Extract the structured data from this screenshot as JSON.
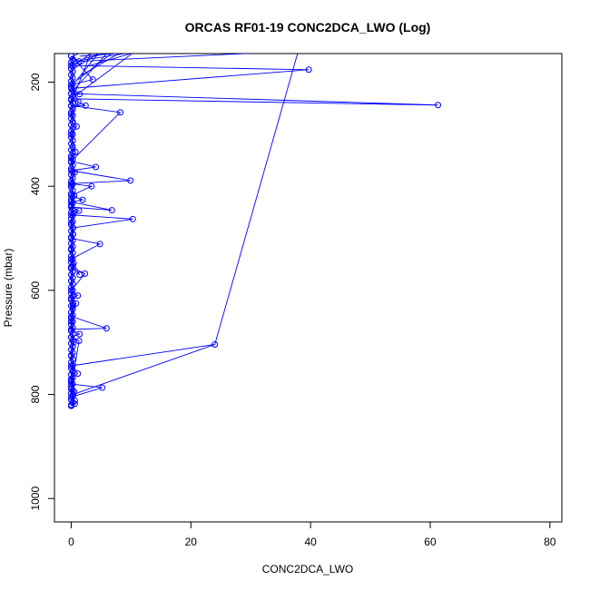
{
  "chart_data": {
    "type": "line",
    "title": "ORCAS RF01-19 CONC2DCA_LWO (Log)",
    "xlabel": "CONC2DCA_LWO",
    "ylabel": "Pressure (mbar)",
    "xlim": [
      -2.8,
      82
    ],
    "ylim": [
      1045,
      145
    ],
    "y_inverted": true,
    "grid": false,
    "x_ticks": [
      0,
      20,
      40,
      60,
      80
    ],
    "x_tick_labels": [
      "0",
      "20",
      "40",
      "60",
      "80"
    ],
    "y_ticks": [
      200,
      400,
      600,
      800,
      1000
    ],
    "y_tick_labels": [
      "200",
      "400",
      "600",
      "800",
      "1000"
    ],
    "colors": {
      "series": "#0000ff",
      "text": "#000000",
      "frame": "#000000"
    },
    "series": [
      {
        "marker": "open-circle",
        "points": [
          [
            0,
            820
          ],
          [
            0.6,
            812
          ],
          [
            0,
            805
          ],
          [
            5.2,
            787
          ],
          [
            0,
            780
          ],
          [
            0,
            770
          ],
          [
            1.1,
            760
          ],
          [
            0,
            745
          ],
          [
            24,
            704
          ],
          [
            0.3,
            800
          ],
          [
            0,
            790
          ],
          [
            1.3,
            697
          ],
          [
            0,
            690
          ],
          [
            1.4,
            684
          ],
          [
            0,
            675
          ],
          [
            5.9,
            673
          ],
          [
            0,
            650
          ],
          [
            0.8,
            625
          ],
          [
            0,
            615
          ],
          [
            1.1,
            610
          ],
          [
            0,
            600
          ],
          [
            2.3,
            568
          ],
          [
            0,
            555
          ],
          [
            1.4,
            570
          ],
          [
            0,
            540
          ],
          [
            4.8,
            511
          ],
          [
            0,
            500
          ],
          [
            0.3,
            480
          ],
          [
            10.3,
            463
          ],
          [
            0,
            455
          ],
          [
            1.3,
            447
          ],
          [
            0,
            440
          ],
          [
            6.8,
            446
          ],
          [
            0,
            430
          ],
          [
            1.9,
            426
          ],
          [
            0,
            418
          ],
          [
            3.4,
            400
          ],
          [
            0,
            395
          ],
          [
            9.9,
            389
          ],
          [
            0,
            370
          ],
          [
            4.1,
            363
          ],
          [
            0,
            352
          ],
          [
            8.2,
            258
          ],
          [
            0,
            245
          ],
          [
            2.4,
            245
          ],
          [
            0,
            232
          ],
          [
            61.3,
            244
          ],
          [
            0,
            222
          ],
          [
            1.4,
            223
          ],
          [
            0,
            212
          ],
          [
            39.7,
            176
          ],
          [
            0,
            168
          ],
          [
            1.3,
            160
          ],
          [
            0,
            150
          ],
          [
            3.6,
            195
          ],
          [
            0,
            205
          ],
          [
            1.2,
            238
          ],
          [
            0,
            262
          ],
          [
            0.9,
            285
          ],
          [
            0,
            300
          ],
          [
            0.7,
            334
          ],
          [
            0,
            346
          ],
          [
            0.6,
            373
          ],
          [
            0,
            398
          ],
          [
            0.5,
            418
          ],
          [
            0,
            436
          ],
          [
            0.4,
            452
          ],
          [
            0,
            470
          ],
          [
            0.3,
            492
          ],
          [
            0,
            520
          ],
          [
            0.4,
            548
          ],
          [
            0,
            582
          ],
          [
            0.3,
            630
          ],
          [
            0,
            660
          ],
          [
            0.4,
            700
          ],
          [
            0,
            725
          ],
          [
            0.3,
            755
          ],
          [
            0,
            775
          ],
          [
            0.5,
            795
          ],
          [
            0,
            810
          ],
          [
            0.6,
            818
          ],
          [
            0,
            822
          ]
        ]
      }
    ],
    "frame_crossing_segments": [
      [
        [
          1.5,
          150
        ],
        [
          16,
          138
        ]
      ],
      [
        [
          0.5,
          160
        ],
        [
          13,
          138
        ]
      ],
      [
        [
          2.0,
          155
        ],
        [
          8.5,
          138
        ]
      ],
      [
        [
          0.3,
          175
        ],
        [
          5.5,
          138
        ]
      ],
      [
        [
          1.0,
          195
        ],
        [
          5.0,
          138
        ]
      ],
      [
        [
          0.2,
          230
        ],
        [
          11,
          138
        ]
      ],
      [
        [
          1.3,
          160
        ],
        [
          42,
          138
        ]
      ],
      [
        [
          0.5,
          225
        ],
        [
          3.5,
          138
        ]
      ],
      [
        [
          24,
          704
        ],
        [
          38,
          138
        ]
      ],
      [
        [
          0.3,
          150
        ],
        [
          2.5,
          138
        ]
      ],
      [
        [
          0.6,
          168
        ],
        [
          4.0,
          138
        ]
      ],
      [
        [
          1.8,
          186
        ],
        [
          9.0,
          138
        ]
      ],
      [
        [
          0,
          205
        ],
        [
          7.5,
          138
        ]
      ],
      [
        [
          0.4,
          215
        ],
        [
          6.5,
          138
        ]
      ],
      [
        [
          2.6,
          170
        ],
        [
          12,
          138
        ]
      ]
    ],
    "dense_column": {
      "x": 0,
      "y_start": 150,
      "y_end": 822,
      "y_step": 6
    }
  }
}
